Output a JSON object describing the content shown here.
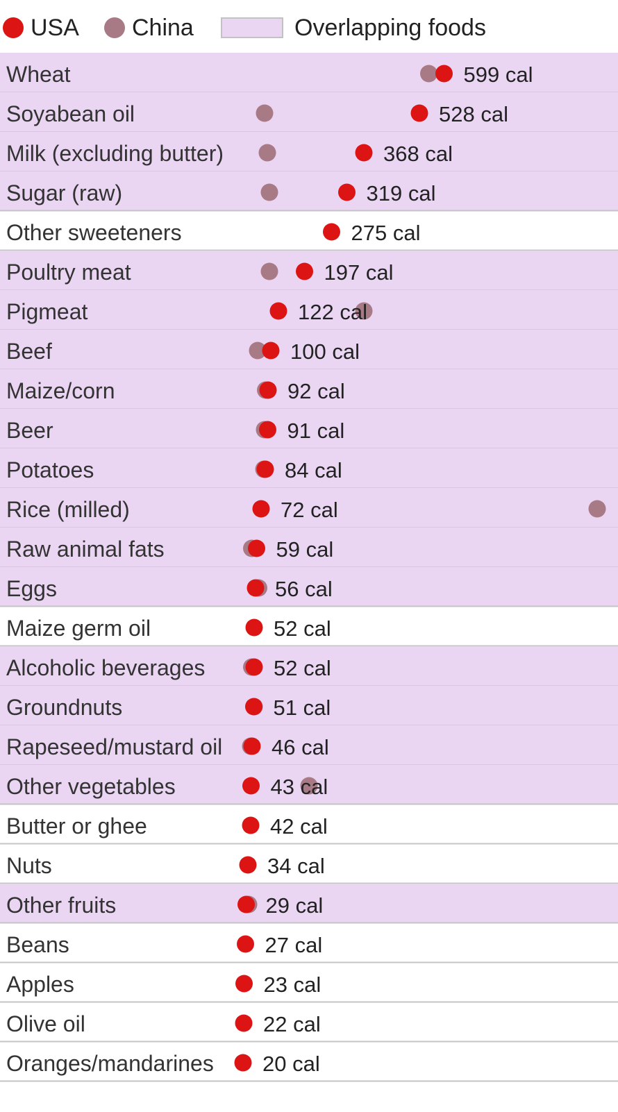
{
  "legend": {
    "usa": {
      "label": "USA",
      "color": "#dc1414"
    },
    "china": {
      "label": "China",
      "color": "#a87a85"
    },
    "overlap": {
      "label": "Overlapping foods",
      "color": "#ead5f2"
    }
  },
  "chart_data": {
    "type": "dot",
    "unit": "cal",
    "xlim": [
      0,
      1000
    ],
    "series": [
      {
        "name": "USA",
        "key": "usa",
        "color": "#dc1414"
      },
      {
        "name": "China",
        "key": "china",
        "color": "#a87a85"
      }
    ],
    "rows": [
      {
        "food": "Wheat",
        "usa": 599,
        "usa_label": "599 cal",
        "china": 555,
        "overlap": true
      },
      {
        "food": "Soyabean oil",
        "usa": 528,
        "usa_label": "528 cal",
        "china": 82,
        "overlap": true
      },
      {
        "food": "Milk (excluding butter)",
        "usa": 368,
        "usa_label": "368 cal",
        "china": 90,
        "overlap": true
      },
      {
        "food": "Sugar (raw)",
        "usa": 319,
        "usa_label": "319 cal",
        "china": 96,
        "overlap": true
      },
      {
        "food": "Other sweeteners",
        "usa": 275,
        "usa_label": "275 cal",
        "china": null,
        "overlap": false
      },
      {
        "food": "Poultry meat",
        "usa": 197,
        "usa_label": "197 cal",
        "china": 96,
        "overlap": true
      },
      {
        "food": "Pigmeat",
        "usa": 122,
        "usa_label": "122 cal",
        "china": 368,
        "overlap": true
      },
      {
        "food": "Beef",
        "usa": 100,
        "usa_label": "100 cal",
        "china": 62,
        "overlap": true
      },
      {
        "food": "Maize/corn",
        "usa": 92,
        "usa_label": "92 cal",
        "china": 85,
        "overlap": true
      },
      {
        "food": "Beer",
        "usa": 91,
        "usa_label": "91 cal",
        "china": 82,
        "overlap": true
      },
      {
        "food": "Potatoes",
        "usa": 84,
        "usa_label": "84 cal",
        "china": 80,
        "overlap": true
      },
      {
        "food": "Rice (milled)",
        "usa": 72,
        "usa_label": "72 cal",
        "china": 1048,
        "overlap": true
      },
      {
        "food": "Raw animal fats",
        "usa": 59,
        "usa_label": "59 cal",
        "china": 45,
        "overlap": true
      },
      {
        "food": "Eggs",
        "usa": 56,
        "usa_label": "56 cal",
        "china": 65,
        "overlap": true
      },
      {
        "food": "Maize germ oil",
        "usa": 52,
        "usa_label": "52 cal",
        "china": null,
        "overlap": false
      },
      {
        "food": "Alcoholic beverages",
        "usa": 52,
        "usa_label": "52 cal",
        "china": 45,
        "overlap": true
      },
      {
        "food": "Groundnuts",
        "usa": 51,
        "usa_label": "51 cal",
        "china": 52,
        "overlap": true
      },
      {
        "food": "Rapeseed/mustard oil",
        "usa": 46,
        "usa_label": "46 cal",
        "china": 42,
        "overlap": true
      },
      {
        "food": "Other vegetables",
        "usa": 43,
        "usa_label": "43 cal",
        "china": 210,
        "overlap": true
      },
      {
        "food": "Butter or ghee",
        "usa": 42,
        "usa_label": "42 cal",
        "china": null,
        "overlap": false
      },
      {
        "food": "Nuts",
        "usa": 34,
        "usa_label": "34 cal",
        "china": null,
        "overlap": false
      },
      {
        "food": "Other fruits",
        "usa": 29,
        "usa_label": "29 cal",
        "china": 36,
        "overlap": true
      },
      {
        "food": "Beans",
        "usa": 27,
        "usa_label": "27 cal",
        "china": null,
        "overlap": false
      },
      {
        "food": "Apples",
        "usa": 23,
        "usa_label": "23 cal",
        "china": null,
        "overlap": false
      },
      {
        "food": "Olive oil",
        "usa": 22,
        "usa_label": "22 cal",
        "china": null,
        "overlap": false
      },
      {
        "food": "Oranges/mandarines",
        "usa": 20,
        "usa_label": "20 cal",
        "china": null,
        "overlap": false
      }
    ]
  }
}
